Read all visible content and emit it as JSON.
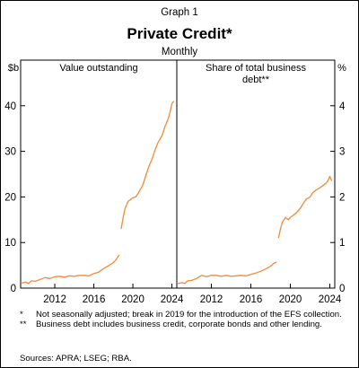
{
  "graph_label": "Graph 1",
  "title": "Private Credit*",
  "subtitle": "Monthly",
  "colors": {
    "line": "#f28a3c",
    "axis": "#000000",
    "frame": "#000000"
  },
  "footnotes": [
    {
      "mark": "*",
      "text": "Not seasonally adjusted; break in 2019 for the introduction of the EFS collection."
    },
    {
      "mark": "**",
      "text": "Business debt includes business credit, corporate bonds and other lending."
    }
  ],
  "sources": "Sources: APRA; LSEG; RBA.",
  "chart_data": [
    {
      "type": "line",
      "title": "Value outstanding",
      "unit_label": "$b",
      "ylim": [
        0,
        50
      ],
      "yticks": [
        0,
        10,
        20,
        30,
        40
      ],
      "xlim": [
        2008.5,
        2024.5
      ],
      "xticks": [
        2012,
        2016,
        2020,
        2024
      ],
      "grid": false,
      "series": [
        {
          "segment": "pre-break",
          "x": [
            2008.6,
            2009,
            2009.3,
            2009.6,
            2010,
            2010.5,
            2011,
            2011.5,
            2012,
            2012.5,
            2013,
            2013.5,
            2014,
            2014.5,
            2015,
            2015.5,
            2016,
            2016.5,
            2017,
            2017.5,
            2018,
            2018.3,
            2018.6
          ],
          "y": [
            1.1,
            1.3,
            1.0,
            1.6,
            1.5,
            1.9,
            2.3,
            2.1,
            2.5,
            2.6,
            2.4,
            2.7,
            2.6,
            2.8,
            2.8,
            2.7,
            3.2,
            3.5,
            4.3,
            4.9,
            5.6,
            6.3,
            7.3
          ]
        },
        {
          "segment": "post-break",
          "x": [
            2018.8,
            2019,
            2019.2,
            2019.5,
            2019.8,
            2020,
            2020.3,
            2020.6,
            2021,
            2021.3,
            2021.6,
            2022,
            2022.3,
            2022.6,
            2023,
            2023.3,
            2023.6,
            2023.8,
            2024,
            2024.2
          ],
          "y": [
            13.0,
            15.5,
            17.5,
            19.0,
            19.5,
            19.8,
            20.0,
            21.0,
            22.5,
            24.5,
            26.5,
            28.5,
            30.5,
            32.0,
            33.5,
            35.5,
            37.0,
            38.5,
            40.5,
            41.0
          ]
        }
      ]
    },
    {
      "type": "line",
      "title": "Share of total business debt**",
      "unit_label": "%",
      "ylim": [
        0,
        5
      ],
      "yticks": [
        0,
        1,
        2,
        3,
        4
      ],
      "xlim": [
        2008.5,
        2024.5
      ],
      "xticks": [
        2012,
        2016,
        2020,
        2024
      ],
      "grid": false,
      "series": [
        {
          "segment": "pre-break",
          "x": [
            2008.6,
            2009,
            2009.3,
            2009.6,
            2010,
            2010.5,
            2011,
            2011.5,
            2012,
            2012.5,
            2013,
            2013.5,
            2014,
            2014.5,
            2015,
            2015.5,
            2016,
            2016.5,
            2017,
            2017.5,
            2018,
            2018.3,
            2018.6
          ],
          "y": [
            0.1,
            0.12,
            0.1,
            0.16,
            0.17,
            0.21,
            0.28,
            0.25,
            0.28,
            0.28,
            0.26,
            0.28,
            0.26,
            0.27,
            0.28,
            0.27,
            0.3,
            0.33,
            0.37,
            0.42,
            0.48,
            0.54,
            0.57
          ]
        },
        {
          "segment": "post-break",
          "x": [
            2018.8,
            2019,
            2019.2,
            2019.5,
            2019.8,
            2020,
            2020.3,
            2020.6,
            2021,
            2021.3,
            2021.6,
            2022,
            2022.3,
            2022.6,
            2023,
            2023.3,
            2023.6,
            2023.8,
            2024,
            2024.2
          ],
          "y": [
            1.1,
            1.3,
            1.45,
            1.55,
            1.5,
            1.55,
            1.6,
            1.65,
            1.75,
            1.85,
            1.95,
            2.0,
            2.1,
            2.15,
            2.2,
            2.25,
            2.3,
            2.35,
            2.45,
            2.35
          ]
        }
      ]
    }
  ]
}
